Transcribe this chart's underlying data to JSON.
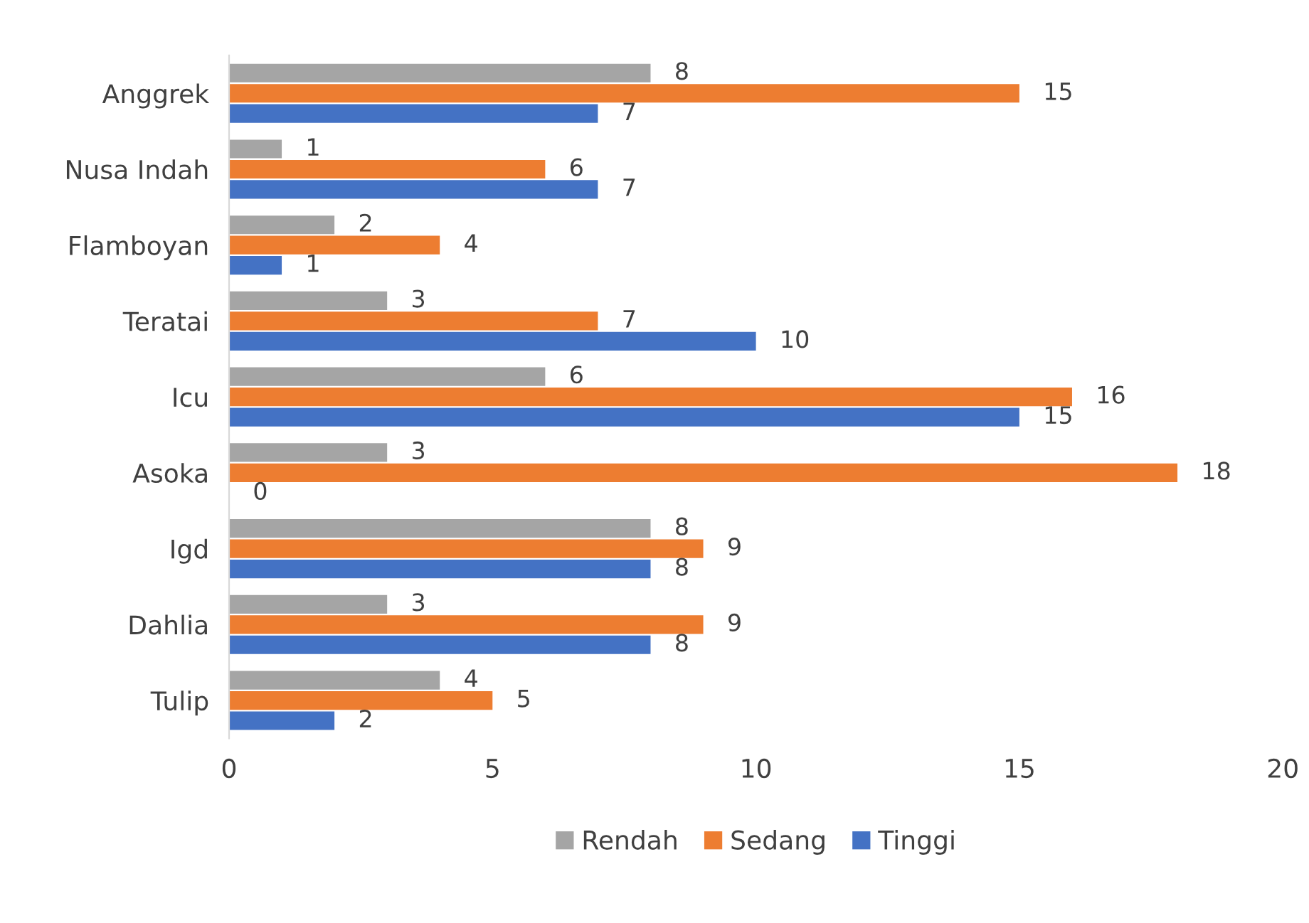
{
  "chart_data": {
    "type": "bar",
    "orientation": "horizontal",
    "categories": [
      "Anggrek",
      "Nusa Indah",
      "Flamboyan",
      "Teratai",
      "Icu",
      "Asoka",
      "Igd",
      "Dahlia",
      "Tulip"
    ],
    "series": [
      {
        "name": "Rendah",
        "color": "#a5a5a5",
        "values": [
          8,
          1,
          2,
          3,
          6,
          3,
          8,
          3,
          4
        ]
      },
      {
        "name": "Sedang",
        "color": "#ed7d31",
        "values": [
          15,
          6,
          4,
          7,
          16,
          18,
          9,
          9,
          5
        ]
      },
      {
        "name": "Tinggi",
        "color": "#4472c4",
        "values": [
          7,
          7,
          1,
          10,
          15,
          0,
          8,
          8,
          2
        ]
      }
    ],
    "xlim": [
      0,
      20
    ],
    "xticks": [
      0,
      5,
      10,
      15,
      20
    ],
    "grid": false,
    "legend": "bottom",
    "data_labels": true
  }
}
